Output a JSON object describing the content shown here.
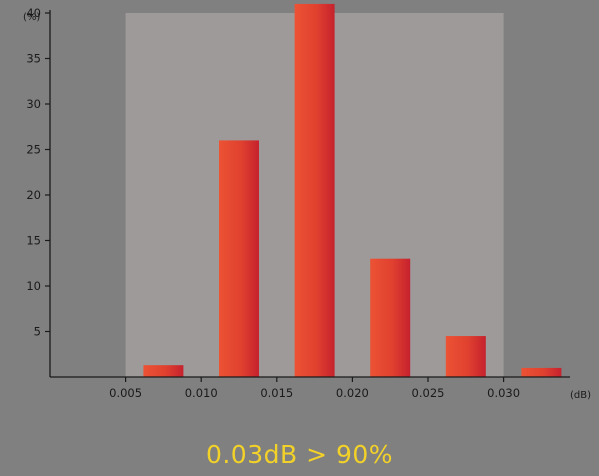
{
  "chart_data": {
    "type": "bar",
    "categories": [
      "0.005-0.010",
      "0.010-0.015",
      "0.015-0.020",
      "0.020-0.025",
      "0.025-0.030",
      "0.030-0.035"
    ],
    "bin_centers": [
      0.0075,
      0.0125,
      0.0175,
      0.0225,
      0.0275,
      0.0325
    ],
    "values": [
      1.3,
      26,
      41,
      13,
      4.5,
      1.0
    ],
    "xlabel": "(dB)",
    "ylabel": "(%)",
    "xlim": [
      0,
      0.035
    ],
    "ylim": [
      0,
      40
    ],
    "x_ticks": [
      0.005,
      0.01,
      0.015,
      0.02,
      0.025,
      0.03
    ],
    "x_tick_labels": [
      "0.005",
      "0.010",
      "0.015",
      "0.020",
      "0.025",
      "0.030"
    ],
    "y_ticks": [
      5,
      10,
      15,
      20,
      25,
      30,
      35,
      40
    ],
    "y_tick_labels": [
      "5",
      "10",
      "15",
      "20",
      "25",
      "30",
      "35",
      "40"
    ],
    "highlight_range": [
      0.005,
      0.03
    ],
    "grid": false,
    "colors": {
      "background": "#808080",
      "highlight": "#9e9a99",
      "bar_light": "#ec5234",
      "bar_dark": "#c5222e",
      "axis": "#1a1a1a"
    }
  },
  "caption": {
    "text": "0.03dB > 90%",
    "color": "#f2d128"
  }
}
